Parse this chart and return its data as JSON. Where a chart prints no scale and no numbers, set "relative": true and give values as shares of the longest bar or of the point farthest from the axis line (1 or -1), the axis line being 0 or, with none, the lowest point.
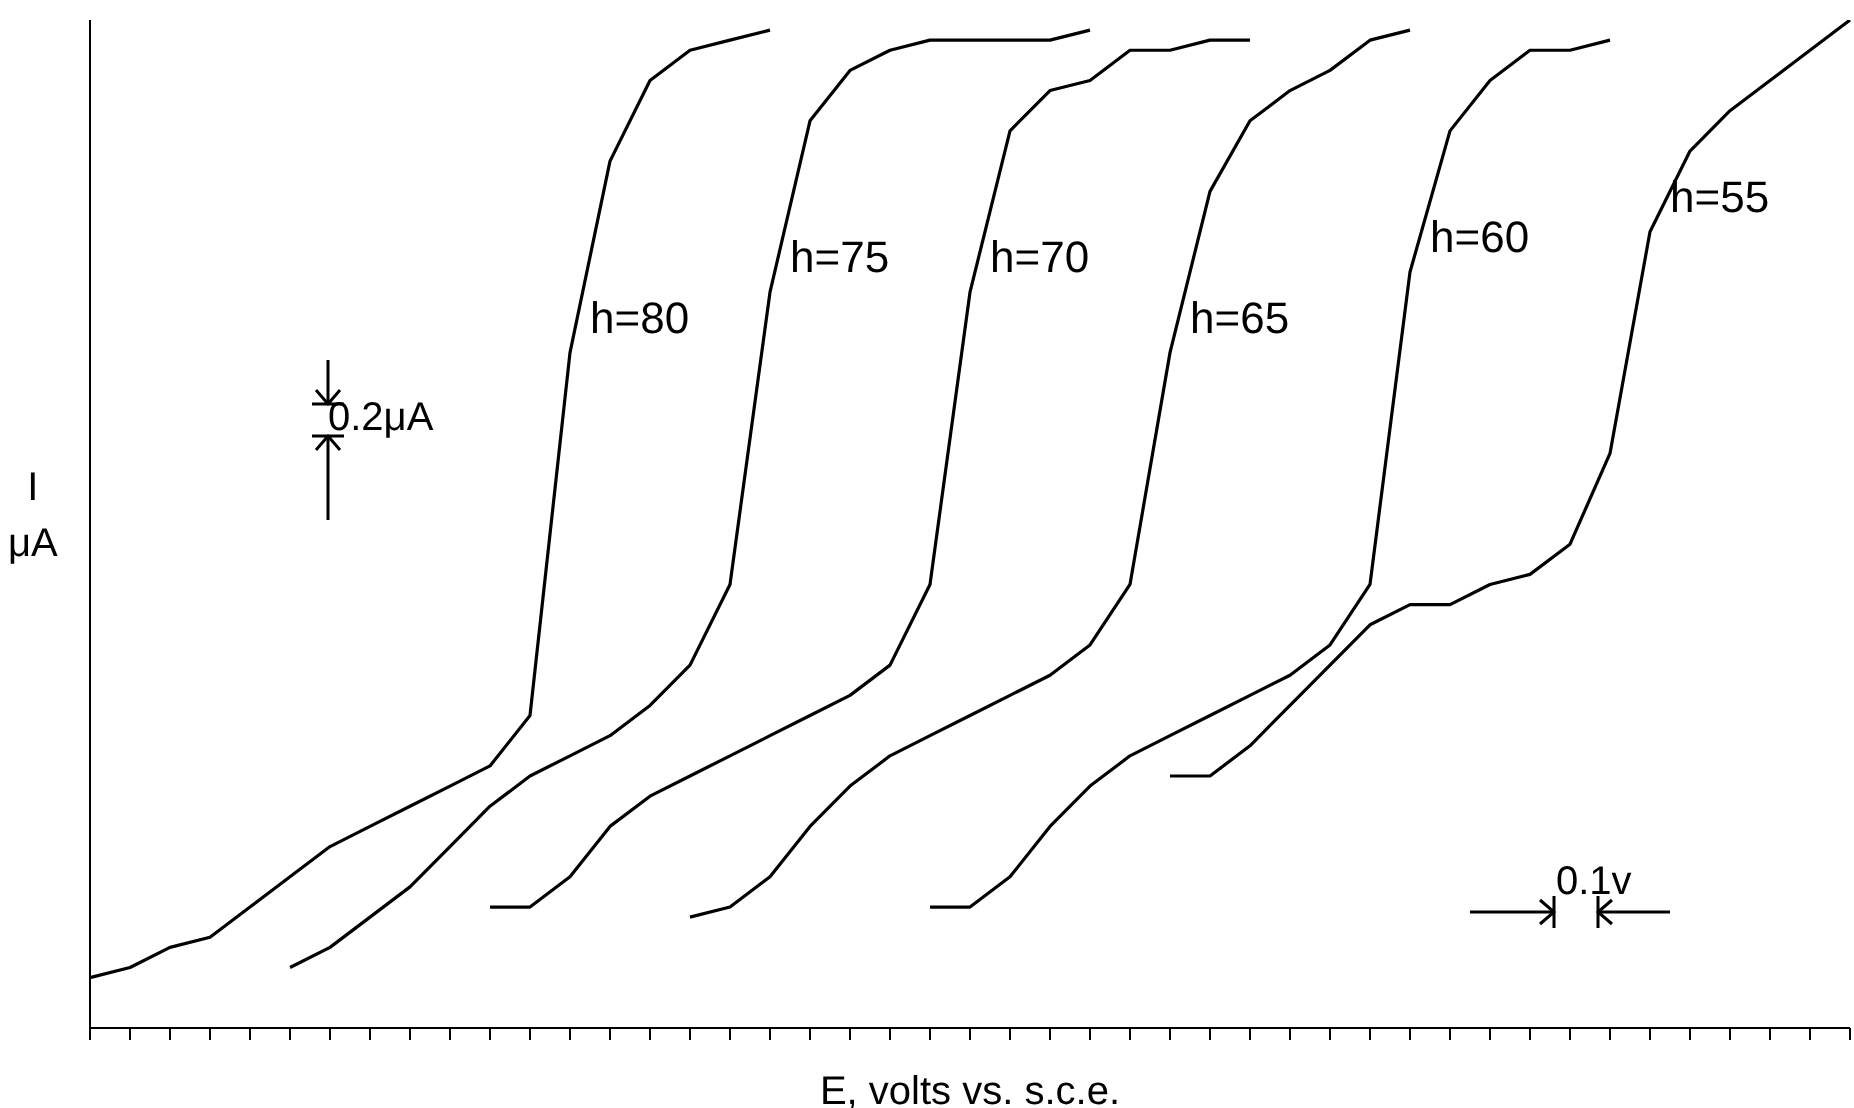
{
  "chart_data": {
    "type": "line",
    "relative": true,
    "xlabel": "E, volts vs. s.c.e.",
    "ylabel": "I μA",
    "categories": [
      null,
      null,
      null,
      null,
      null,
      null,
      null,
      null,
      null,
      null,
      null,
      null,
      null,
      null,
      null,
      null,
      null,
      null,
      null,
      null,
      null,
      null,
      null,
      null,
      null,
      null,
      null,
      null,
      null,
      null,
      null,
      null,
      null,
      null,
      null,
      null,
      null,
      null,
      null,
      null,
      null,
      null,
      null,
      null,
      null
    ],
    "series": [
      {
        "name": "h=80",
        "color": "#000000",
        "values": [
          0.05,
          0.06,
          0.08,
          0.09,
          0.12,
          0.15,
          0.18,
          0.2,
          0.22,
          0.24,
          0.26,
          0.31,
          0.67,
          0.86,
          0.94,
          0.97,
          0.98,
          0.99,
          null,
          null,
          null,
          null,
          null,
          null,
          null,
          null,
          null,
          null,
          null,
          null,
          null,
          null,
          null,
          null,
          null,
          null,
          null,
          null,
          null,
          null,
          null,
          null,
          null,
          null,
          null
        ]
      },
      {
        "name": "h=75",
        "color": "#000000",
        "values": [
          null,
          null,
          null,
          null,
          null,
          0.06,
          0.08,
          0.11,
          0.14,
          0.18,
          0.22,
          0.25,
          0.27,
          0.29,
          0.32,
          0.36,
          0.44,
          0.73,
          0.9,
          0.95,
          0.97,
          0.98,
          0.98,
          0.98,
          0.98,
          0.99,
          null,
          null,
          null,
          null,
          null,
          null,
          null,
          null,
          null,
          null,
          null,
          null,
          null,
          null,
          null,
          null,
          null,
          null,
          null
        ]
      },
      {
        "name": "h=70",
        "color": "#000000",
        "values": [
          null,
          null,
          null,
          null,
          null,
          null,
          null,
          null,
          null,
          null,
          0.12,
          0.12,
          0.15,
          0.2,
          0.23,
          0.25,
          0.27,
          0.29,
          0.31,
          0.33,
          0.36,
          0.44,
          0.73,
          0.89,
          0.93,
          0.94,
          0.97,
          0.97,
          0.98,
          0.98,
          null,
          null,
          null,
          null,
          null,
          null,
          null,
          null,
          null,
          null,
          null,
          null,
          null,
          null,
          null
        ]
      },
      {
        "name": "h=65",
        "color": "#000000",
        "values": [
          null,
          null,
          null,
          null,
          null,
          null,
          null,
          null,
          null,
          null,
          null,
          null,
          null,
          null,
          null,
          0.11,
          0.12,
          0.15,
          0.2,
          0.24,
          0.27,
          0.29,
          0.31,
          0.33,
          0.35,
          0.38,
          0.44,
          0.67,
          0.83,
          0.9,
          0.93,
          0.95,
          0.98,
          0.99,
          null,
          null,
          null,
          null,
          null,
          null,
          null,
          null,
          null,
          null,
          null
        ]
      },
      {
        "name": "h=60",
        "color": "#000000",
        "values": [
          null,
          null,
          null,
          null,
          null,
          null,
          null,
          null,
          null,
          null,
          null,
          null,
          null,
          null,
          null,
          null,
          null,
          null,
          null,
          null,
          null,
          0.12,
          0.12,
          0.15,
          0.2,
          0.24,
          0.27,
          0.29,
          0.31,
          0.33,
          0.35,
          0.38,
          0.44,
          0.75,
          0.89,
          0.94,
          0.97,
          0.97,
          0.98,
          null,
          null,
          null,
          null,
          null,
          null
        ]
      },
      {
        "name": "h=55",
        "color": "#000000",
        "values": [
          null,
          null,
          null,
          null,
          null,
          null,
          null,
          null,
          null,
          null,
          null,
          null,
          null,
          null,
          null,
          null,
          null,
          null,
          null,
          null,
          null,
          null,
          null,
          null,
          null,
          null,
          null,
          0.25,
          0.25,
          0.28,
          0.32,
          0.36,
          0.4,
          0.42,
          0.42,
          0.44,
          0.45,
          0.48,
          0.57,
          0.79,
          0.87,
          0.91,
          0.94,
          0.97,
          1
        ]
      }
    ],
    "annotations": [
      "0.2μA",
      "0.1v"
    ]
  }
}
